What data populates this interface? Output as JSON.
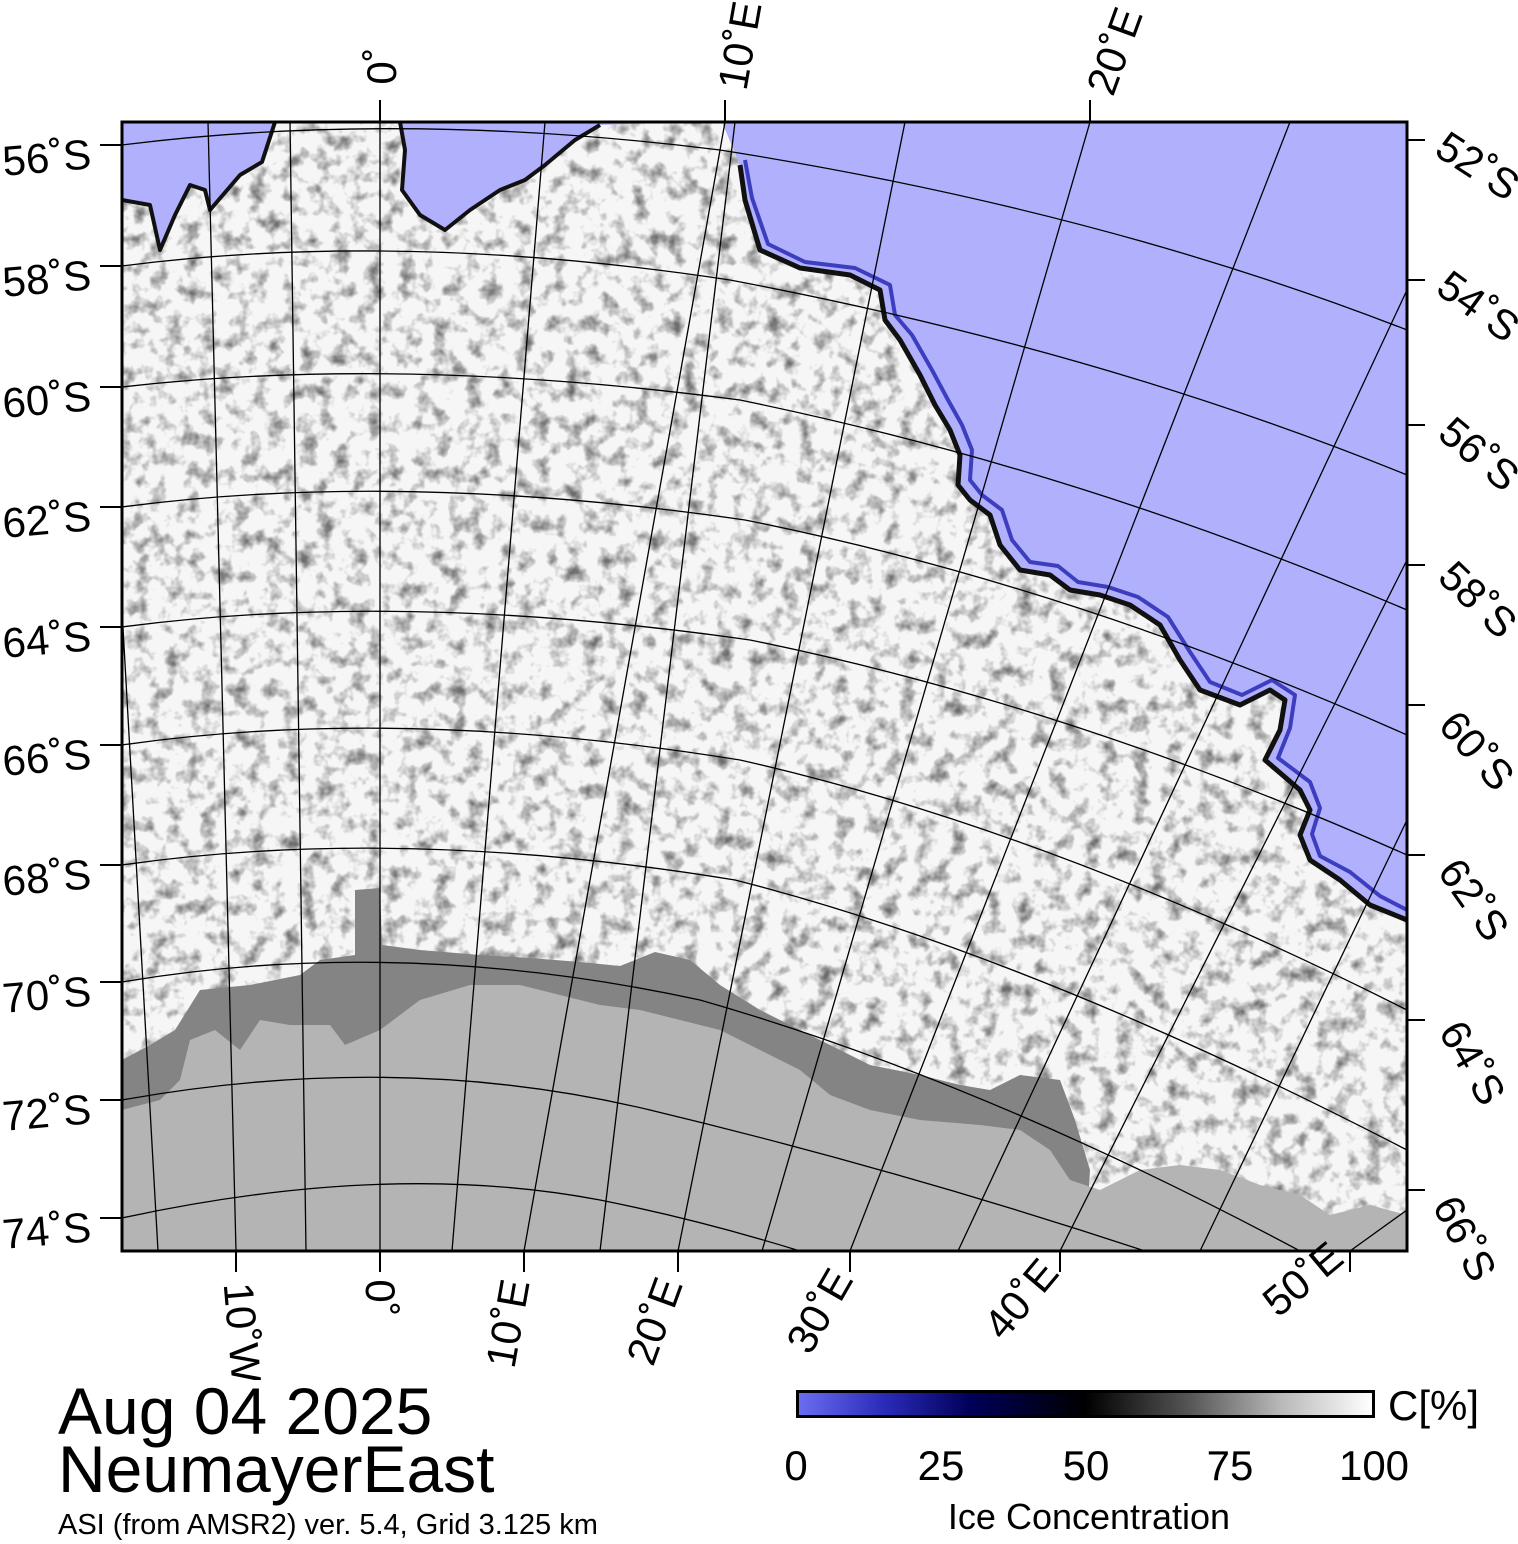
{
  "map": {
    "date": "Aug 04 2025",
    "region": "NeumayerEast",
    "source": "ASI (from AMSR2) ver. 5.4,  Grid 3.125 km",
    "colors": {
      "open_water": "#b0b0fc",
      "land": "#b4b4b4",
      "ice_shelf": "#848484",
      "sea_ice": "#f6f6f6",
      "graticule": "#000000"
    },
    "lat_labels_left": [
      "56˚S",
      "58˚S",
      "60˚S",
      "62˚S",
      "64˚S",
      "66˚S",
      "68˚S",
      "70˚S",
      "72˚S",
      "74˚S"
    ],
    "lat_labels_right": [
      "52˚S",
      "54˚S",
      "56˚S",
      "58˚S",
      "60˚S",
      "62˚S",
      "64˚S",
      "66˚S"
    ],
    "lon_labels_top": [
      "0˚",
      "10˚E",
      "20˚E"
    ],
    "lon_labels_bottom": [
      "10˚W",
      "0˚",
      "10˚E",
      "20˚E",
      "30˚E",
      "40˚E",
      "50˚E"
    ]
  },
  "colorbar": {
    "unit": "C[%]",
    "ticks": [
      "0",
      "25",
      "50",
      "75",
      "100"
    ],
    "title": "Ice Concentration",
    "colors": [
      "#6a6cf0",
      "#000058",
      "#000000",
      "#ffffff"
    ]
  }
}
